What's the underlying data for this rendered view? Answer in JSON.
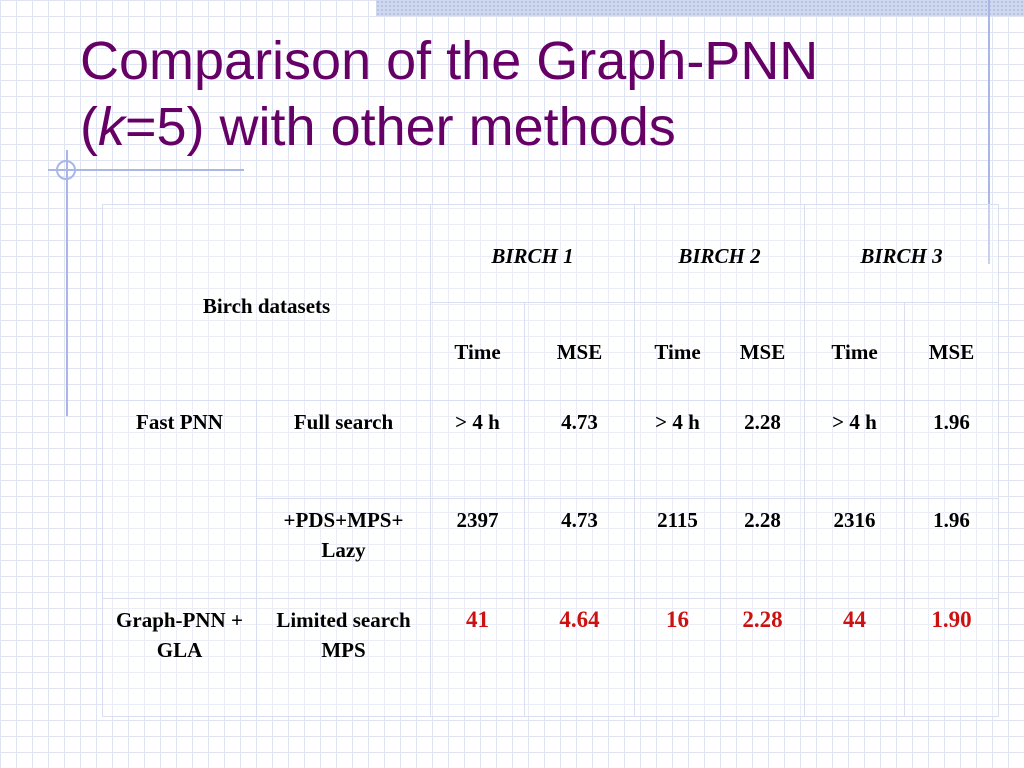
{
  "slide": {
    "title_line1": "Comparison of the Graph-PNN",
    "title_open": "(",
    "title_k": "k",
    "title_rest": "=5) with other methods"
  },
  "table": {
    "stub_header": "Birch datasets",
    "datasets": [
      "BIRCH 1",
      "BIRCH 2",
      "BIRCH 3"
    ],
    "subheaders": [
      "Time",
      "MSE",
      "Time",
      "MSE",
      "Time",
      "MSE"
    ],
    "rows": [
      {
        "group": "Fast PNN",
        "method": "Full search",
        "values": [
          "> 4 h",
          "4.73",
          "> 4 h",
          "2.28",
          "> 4 h",
          "1.96"
        ]
      },
      {
        "group": "",
        "method": "+PDS+MPS+ Lazy",
        "values": [
          "2397",
          "4.73",
          "2115",
          "2.28",
          "2316",
          "1.96"
        ]
      },
      {
        "group": "Graph-PNN + GLA",
        "method": "Limited search MPS",
        "values": [
          "41",
          "4.64",
          "16",
          "2.28",
          "44",
          "1.90"
        ],
        "highlight": true
      }
    ]
  },
  "colors": {
    "title": "#660066",
    "highlight": "#cc1111",
    "grid": "#dfe3f3",
    "rule": "#a9b7e6"
  }
}
